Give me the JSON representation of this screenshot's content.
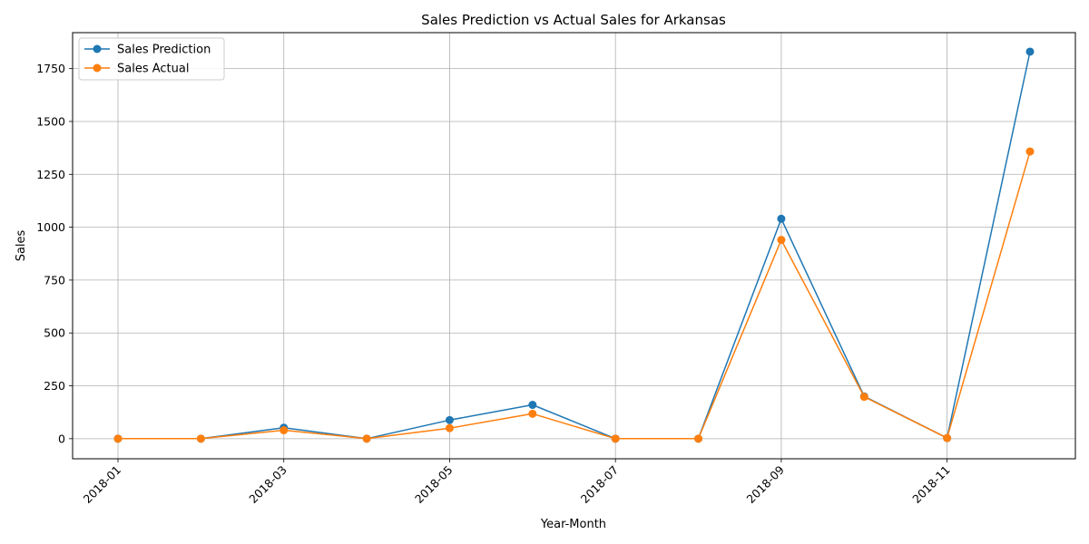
{
  "chart_data": {
    "type": "line",
    "title": "Sales Prediction vs Actual Sales for Arkansas",
    "xlabel": "Year-Month",
    "ylabel": "Sales",
    "x": [
      "2018-01",
      "2018-02",
      "2018-03",
      "2018-04",
      "2018-05",
      "2018-06",
      "2018-07",
      "2018-08",
      "2018-09",
      "2018-10",
      "2018-11",
      "2018-12"
    ],
    "xticks": [
      "2018-01",
      "2018-03",
      "2018-05",
      "2018-07",
      "2018-09",
      "2018-11"
    ],
    "yticks": [
      0,
      250,
      500,
      750,
      1000,
      1250,
      1500,
      1750
    ],
    "ylim": [
      -95,
      1920
    ],
    "grid": true,
    "legend_position": "top-left",
    "series": [
      {
        "name": "Sales Prediction",
        "color": "#1f77b4",
        "values": [
          0,
          0,
          52,
          0,
          88,
          160,
          0,
          0,
          1040,
          200,
          3,
          1830
        ]
      },
      {
        "name": "Sales Actual",
        "color": "#ff7f0e",
        "values": [
          0,
          0,
          40,
          0,
          50,
          118,
          0,
          0,
          940,
          198,
          3,
          1358
        ]
      }
    ]
  }
}
